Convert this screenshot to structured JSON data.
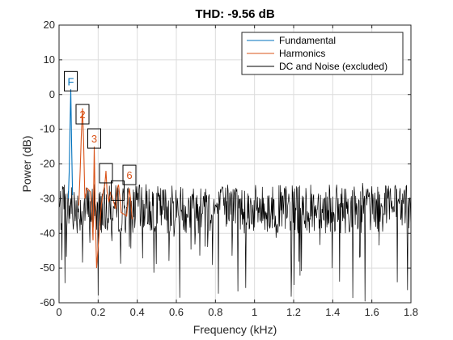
{
  "chart_data": {
    "type": "line",
    "title": "THD:  -9.56 dB",
    "xlabel": "Frequency (kHz)",
    "ylabel": "Power (dB)",
    "xlim": [
      0,
      1.8
    ],
    "ylim": [
      -60,
      20
    ],
    "xticks": [
      0,
      0.2,
      0.4,
      0.6,
      0.8,
      1,
      1.2,
      1.4,
      1.6,
      1.8
    ],
    "xtick_labels": [
      "0",
      "0.2",
      "0.4",
      "0.6",
      "0.8",
      "1",
      "1.2",
      "1.4",
      "1.6",
      "1.8"
    ],
    "yticks": [
      -60,
      -50,
      -40,
      -30,
      -20,
      -10,
      0,
      10,
      20
    ],
    "ytick_labels": [
      "-60",
      "-50",
      "-40",
      "-30",
      "-20",
      "-10",
      "0",
      "10",
      "20"
    ],
    "grid": true,
    "legend_position": "top-right",
    "series": [
      {
        "name": "Fundamental",
        "color": "#0072BD",
        "x": [
          0.047,
          0.052,
          0.056,
          0.06,
          0.064,
          0.069
        ],
        "y": [
          -30,
          -22,
          -10,
          1.5,
          -14,
          -29
        ]
      },
      {
        "name": "Harmonics",
        "color": "#D95319",
        "x": [
          0.101,
          0.108,
          0.114,
          0.12,
          0.126,
          0.132,
          0.144,
          0.16,
          0.168,
          0.174,
          0.18,
          0.186,
          0.192,
          0.216,
          0.226,
          0.234,
          0.24,
          0.246,
          0.254,
          0.264,
          0.29,
          0.298,
          0.304,
          0.31,
          0.318,
          0.346,
          0.354,
          0.36,
          0.366,
          0.374
        ],
        "y": [
          -32,
          -22,
          -12,
          -4,
          -14,
          -30,
          -27,
          -28,
          -34,
          -42,
          -15,
          -36,
          -50,
          -32,
          -28,
          -26,
          -22,
          -28,
          -31,
          -28,
          -33,
          -27,
          -26,
          -29,
          -34,
          -35,
          -30,
          -27,
          -30,
          -36
        ]
      },
      {
        "name": "DC and Noise (excluded)",
        "color": "#000000",
        "seed": 7,
        "mean": -33,
        "spread": 7,
        "dip_min": -60
      }
    ],
    "annotations": [
      {
        "label": "F",
        "x": 0.06,
        "y": 1.5,
        "color": "#0072BD"
      },
      {
        "label": "2",
        "x": 0.12,
        "y": -8,
        "color": "#D95319"
      },
      {
        "label": "3",
        "x": 0.18,
        "y": -15,
        "color": "#D95319"
      },
      {
        "label": "",
        "x": 0.24,
        "y": -25,
        "color": "#D95319"
      },
      {
        "label": "",
        "x": 0.3,
        "y": -30,
        "color": "#D95319"
      },
      {
        "label": "6",
        "x": 0.36,
        "y": -25.5,
        "color": "#D95319"
      }
    ]
  }
}
